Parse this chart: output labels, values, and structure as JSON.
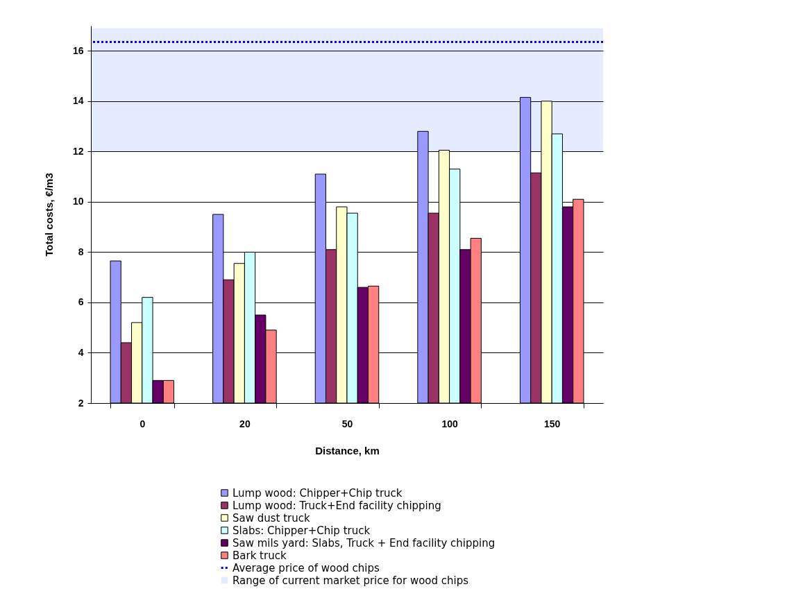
{
  "chart_data": {
    "type": "bar",
    "xlabel": "Distance, km",
    "ylabel": "Total costs, €/m3",
    "categories": [
      "0",
      "20",
      "50",
      "100",
      "150"
    ],
    "series": [
      {
        "name": "Lump wood: Chipper+Chip truck",
        "color": "#9999ff",
        "values": [
          7.65,
          9.5,
          11.1,
          12.8,
          14.15
        ]
      },
      {
        "name": "Lump wood: Truck+End facility chipping",
        "color": "#993366",
        "values": [
          4.4,
          6.9,
          8.1,
          9.55,
          11.15
        ]
      },
      {
        "name": "Saw dust truck",
        "color": "#ffffcc",
        "values": [
          5.2,
          7.55,
          9.8,
          12.05,
          14.0
        ]
      },
      {
        "name": "Slabs: Chipper+Chip truck",
        "color": "#ccffff",
        "values": [
          6.2,
          8.0,
          9.55,
          11.3,
          12.7
        ]
      },
      {
        "name": "Saw mils yard: Slabs, Truck + End facility chipping",
        "color": "#660066",
        "values": [
          2.9,
          5.5,
          6.6,
          8.1,
          9.8
        ]
      },
      {
        "name": "Bark truck",
        "color": "#ff8080",
        "values": [
          2.9,
          4.9,
          6.65,
          8.55,
          10.1
        ]
      }
    ],
    "ylim": [
      2,
      17
    ],
    "yticks": [
      2,
      4,
      6,
      8,
      10,
      12,
      14,
      16
    ],
    "grid": "y",
    "legend": "bottom",
    "ref_lines": [
      {
        "axis": "y",
        "value": 16.35,
        "label": "Average price of wood chips",
        "color": "#0000ff",
        "line_style": "dotted"
      }
    ],
    "bands": [
      {
        "axis": "y",
        "from": 12,
        "to": 16.9,
        "label": "Range of current market price for wood chips",
        "color": "#e6ecff"
      }
    ]
  }
}
